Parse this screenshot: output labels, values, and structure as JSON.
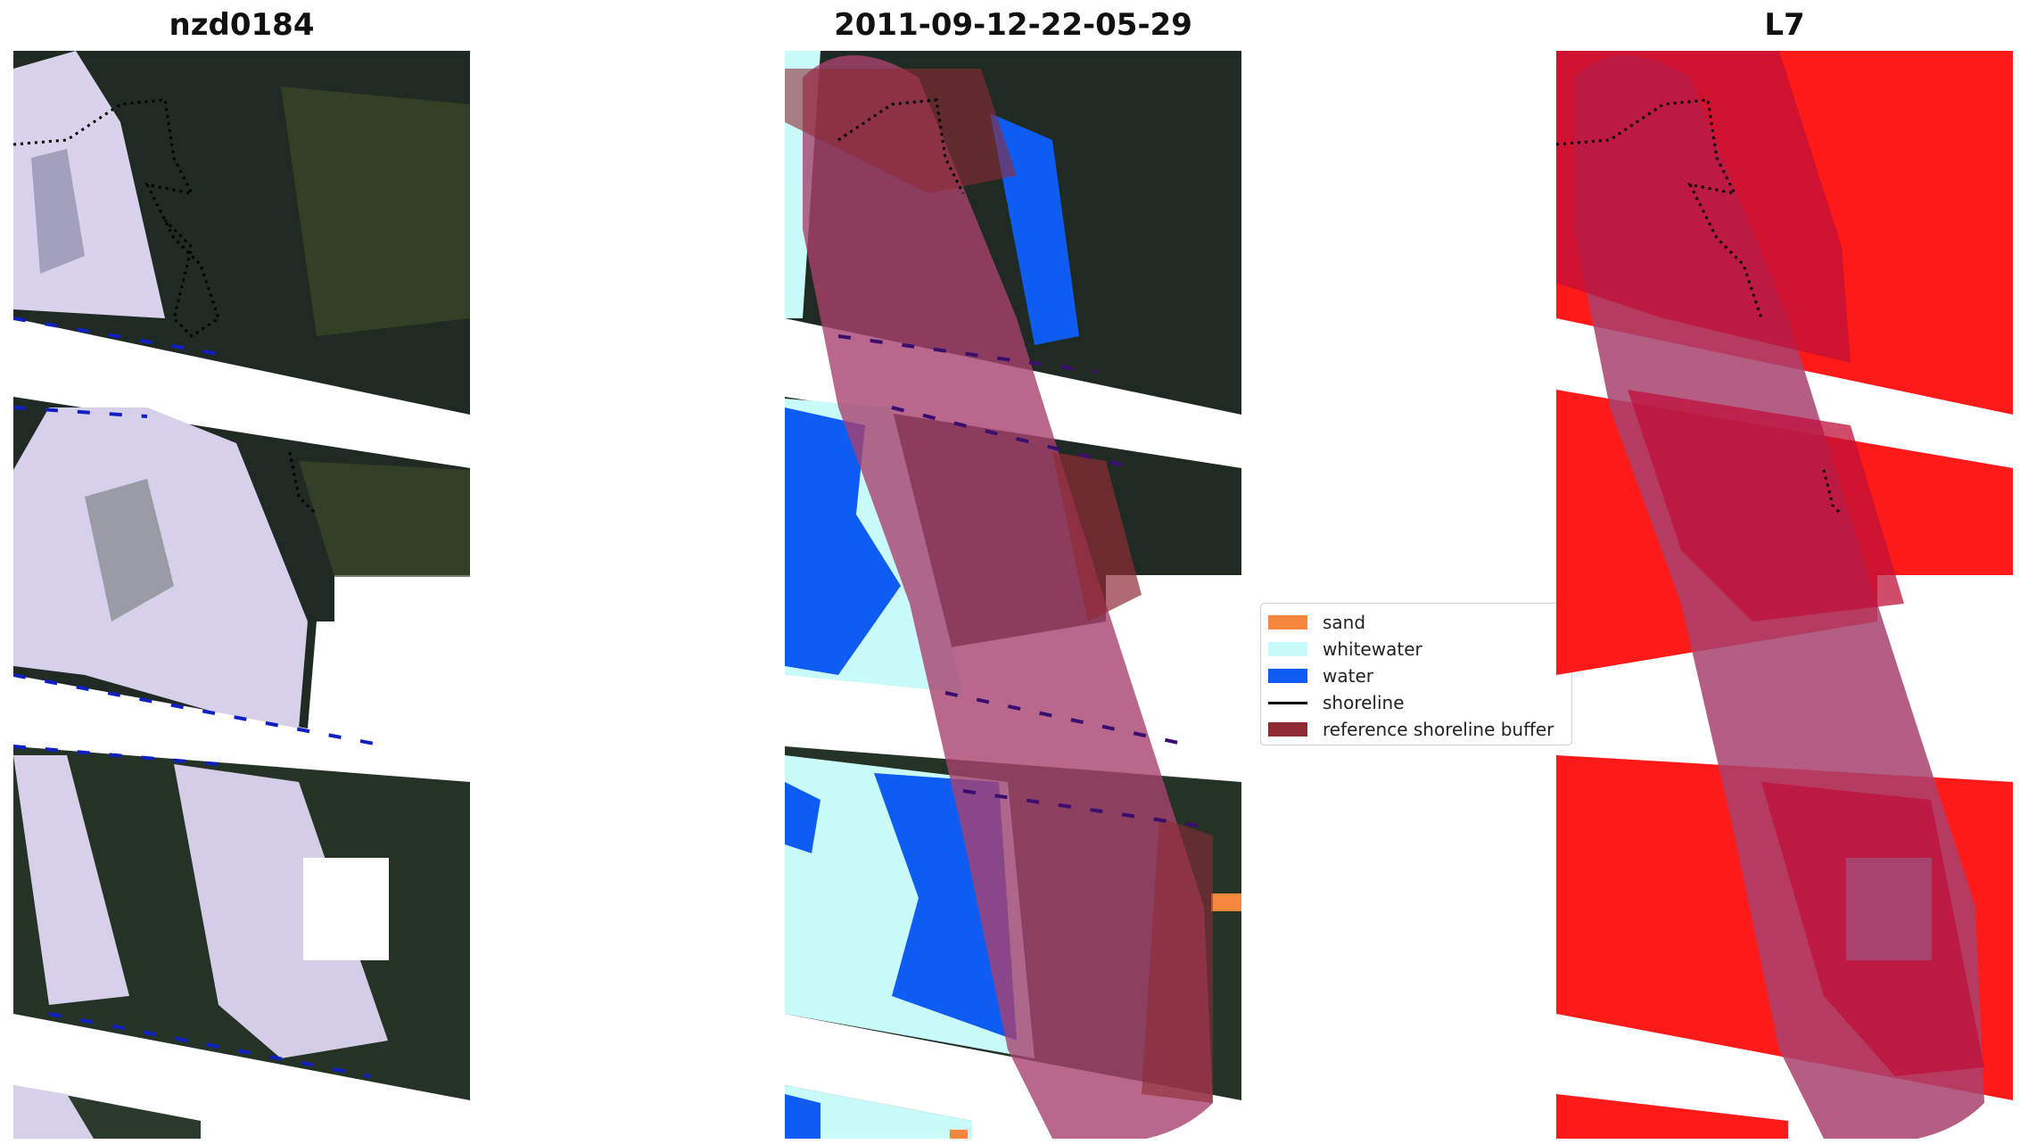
{
  "titles": {
    "left": "nzd0184",
    "middle": "2011-09-12-22-05-29",
    "right": "L7"
  },
  "panels": {
    "left": {
      "name": "true-color-image",
      "content": "satellite RGB image with swath gaps"
    },
    "middle": {
      "name": "classified-image",
      "content": "pixel classification overlaid on RGB with reference buffer"
    },
    "right": {
      "name": "detection-mask",
      "content": "red mask with reference shoreline buffer"
    }
  },
  "legend": {
    "items": [
      {
        "label": "sand",
        "color": "#f4873c",
        "kind": "patch"
      },
      {
        "label": "whitewater",
        "color": "#c9fbfb",
        "kind": "patch"
      },
      {
        "label": "water",
        "color": "#0f5cf3",
        "kind": "patch"
      },
      {
        "label": "shoreline",
        "color": "#000000",
        "kind": "line"
      },
      {
        "label": "reference shoreline buffer",
        "color": "#8e2b35",
        "kind": "patch"
      }
    ]
  },
  "colors": {
    "forest_dark": "#1f2a22",
    "forest_mid": "#354326",
    "surf_white": "#d8d2ec",
    "scan_gap": "#ffffff",
    "buffer_overlay": "#a8426e",
    "mask_red": "#ff1a1a",
    "mask_overlap": "#c0103a"
  }
}
